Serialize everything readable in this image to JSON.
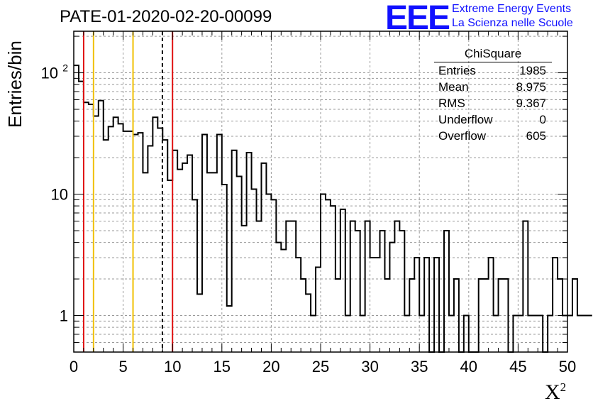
{
  "title": "PATE-01-2020-02-20-00099",
  "logo": {
    "mark": "EEE",
    "line1": "Extreme Energy Events",
    "line2": "La Scienza nelle Scuole",
    "color": "#1111ff"
  },
  "stats": {
    "title": "ChiSquare",
    "rows": [
      {
        "label": "Entries",
        "value": "1985"
      },
      {
        "label": "Mean",
        "value": "8.975"
      },
      {
        "label": "RMS",
        "value": "9.367"
      },
      {
        "label": "Underflow",
        "value": "0"
      },
      {
        "label": "Overflow",
        "value": "605"
      }
    ]
  },
  "chart_data": {
    "type": "bar",
    "subtype": "step-histogram",
    "xlabel": "X",
    "xlabel_sup": "2",
    "ylabel": "Entries/bin",
    "xlim": [
      0,
      50
    ],
    "ylim": [
      0.5,
      220
    ],
    "yscale": "log",
    "grid": true,
    "bin_width": 0.5,
    "x_ticks": [
      "0",
      "5",
      "10",
      "15",
      "20",
      "25",
      "30",
      "35",
      "40",
      "45",
      "50"
    ],
    "y_ticks": [
      {
        "value": 1,
        "label": "1"
      },
      {
        "value": 10,
        "label": "10"
      },
      {
        "value": 100,
        "label": "10",
        "sup": "2"
      }
    ],
    "values": [
      115,
      85,
      57,
      55,
      44,
      59,
      28,
      36,
      43,
      38,
      33,
      33,
      31,
      32,
      15,
      25,
      43,
      35,
      28,
      13,
      23,
      16,
      18,
      21,
      9,
      1.5,
      31,
      15,
      15,
      31,
      12,
      1.2,
      23,
      14,
      5.5,
      22,
      11,
      6,
      18,
      10,
      9,
      4,
      3.5,
      6,
      6,
      3,
      2,
      1.5,
      1,
      2.5,
      10,
      9,
      8,
      2,
      7.5,
      1,
      6,
      5,
      1,
      6,
      3,
      3,
      5,
      2,
      4,
      6,
      5,
      1,
      2,
      3,
      1,
      3,
      0.3,
      3,
      0.3,
      5,
      1,
      2,
      0.3,
      1,
      0.3,
      0.3,
      2,
      2,
      3,
      1,
      2,
      2,
      0.3,
      1,
      1,
      6,
      1,
      1,
      1,
      0.3,
      1,
      3,
      2,
      1,
      1,
      2,
      1,
      1,
      1
    ],
    "vertical_lines": [
      {
        "x": 1,
        "color": "#e01010",
        "style": "solid"
      },
      {
        "x": 2,
        "color": "#f0c000",
        "style": "solid"
      },
      {
        "x": 6,
        "color": "#f0c000",
        "style": "solid"
      },
      {
        "x": 8.975,
        "color": "#000000",
        "style": "dashed"
      },
      {
        "x": 10,
        "color": "#e01010",
        "style": "solid"
      }
    ]
  }
}
